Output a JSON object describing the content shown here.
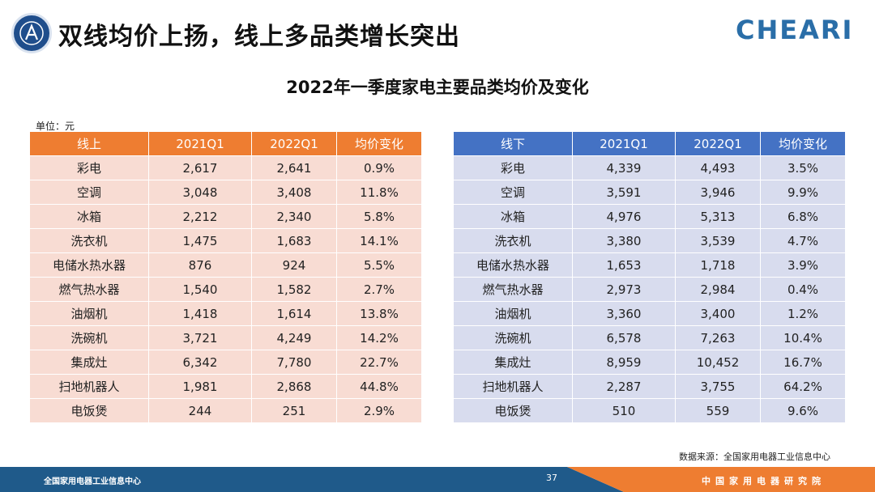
{
  "header": {
    "title": "双线均价上扬，线上多品类增长突出",
    "brand_logo_text": "CHEARI",
    "org_seal_text": "全国家用电器工业信息中心"
  },
  "table_title": "2022年一季度家电主要品类均价及变化",
  "unit_label": "单位：元",
  "online": {
    "headers": [
      "线上",
      "2021Q1",
      "2022Q1",
      "均价变化"
    ],
    "header_color": "#ee7d31",
    "row_color": "#f8dcd3",
    "rows": [
      {
        "cat": "彩电",
        "v2021": "2,617",
        "v2022": "2,641",
        "change": "0.9%",
        "bold": false
      },
      {
        "cat": "空调",
        "v2021": "3,048",
        "v2022": "3,408",
        "change": "11.8%",
        "bold": true
      },
      {
        "cat": "冰箱",
        "v2021": "2,212",
        "v2022": "2,340",
        "change": "5.8%",
        "bold": false
      },
      {
        "cat": "洗衣机",
        "v2021": "1,475",
        "v2022": "1,683",
        "change": "14.1%",
        "bold": true
      },
      {
        "cat": "电储水热水器",
        "v2021": "876",
        "v2022": "924",
        "change": "5.5%",
        "bold": false
      },
      {
        "cat": "燃气热水器",
        "v2021": "1,540",
        "v2022": "1,582",
        "change": "2.7%",
        "bold": false
      },
      {
        "cat": "油烟机",
        "v2021": "1,418",
        "v2022": "1,614",
        "change": "13.8%",
        "bold": true
      },
      {
        "cat": "洗碗机",
        "v2021": "3,721",
        "v2022": "4,249",
        "change": "14.2%",
        "bold": true
      },
      {
        "cat": "集成灶",
        "v2021": "6,342",
        "v2022": "7,780",
        "change": "22.7%",
        "bold": true
      },
      {
        "cat": "扫地机器人",
        "v2021": "1,981",
        "v2022": "2,868",
        "change": "44.8%",
        "bold": true
      },
      {
        "cat": "电饭煲",
        "v2021": "244",
        "v2022": "251",
        "change": "2.9%",
        "bold": false
      }
    ]
  },
  "offline": {
    "headers": [
      "线下",
      "2021Q1",
      "2022Q1",
      "均价变化"
    ],
    "header_color": "#4472c4",
    "row_color": "#d8dcee",
    "rows": [
      {
        "cat": "彩电",
        "v2021": "4,339",
        "v2022": "4,493",
        "change": "3.5%",
        "bold": false
      },
      {
        "cat": "空调",
        "v2021": "3,591",
        "v2022": "3,946",
        "change": "9.9%",
        "bold": false
      },
      {
        "cat": "冰箱",
        "v2021": "4,976",
        "v2022": "5,313",
        "change": "6.8%",
        "bold": false
      },
      {
        "cat": "洗衣机",
        "v2021": "3,380",
        "v2022": "3,539",
        "change": "4.7%",
        "bold": false
      },
      {
        "cat": "电储水热水器",
        "v2021": "1,653",
        "v2022": "1,718",
        "change": "3.9%",
        "bold": false
      },
      {
        "cat": "燃气热水器",
        "v2021": "2,973",
        "v2022": "2,984",
        "change": "0.4%",
        "bold": false
      },
      {
        "cat": "油烟机",
        "v2021": "3,360",
        "v2022": "3,400",
        "change": "1.2%",
        "bold": false
      },
      {
        "cat": "洗碗机",
        "v2021": "6,578",
        "v2022": "7,263",
        "change": "10.4%",
        "bold": true
      },
      {
        "cat": "集成灶",
        "v2021": "8,959",
        "v2022": "10,452",
        "change": "16.7%",
        "bold": true
      },
      {
        "cat": "扫地机器人",
        "v2021": "2,287",
        "v2022": "3,755",
        "change": "64.2%",
        "bold": true
      },
      {
        "cat": "电饭煲",
        "v2021": "510",
        "v2022": "559",
        "change": "9.6%",
        "bold": false
      }
    ]
  },
  "source": "数据来源：全国家用电器工业信息中心",
  "footer": {
    "left_text": "全国家用电器工业信息中心",
    "page_number": "37",
    "right_text": "中国家用电器研究院",
    "left_color": "#1f5a8a",
    "right_color": "#ee7d31"
  }
}
